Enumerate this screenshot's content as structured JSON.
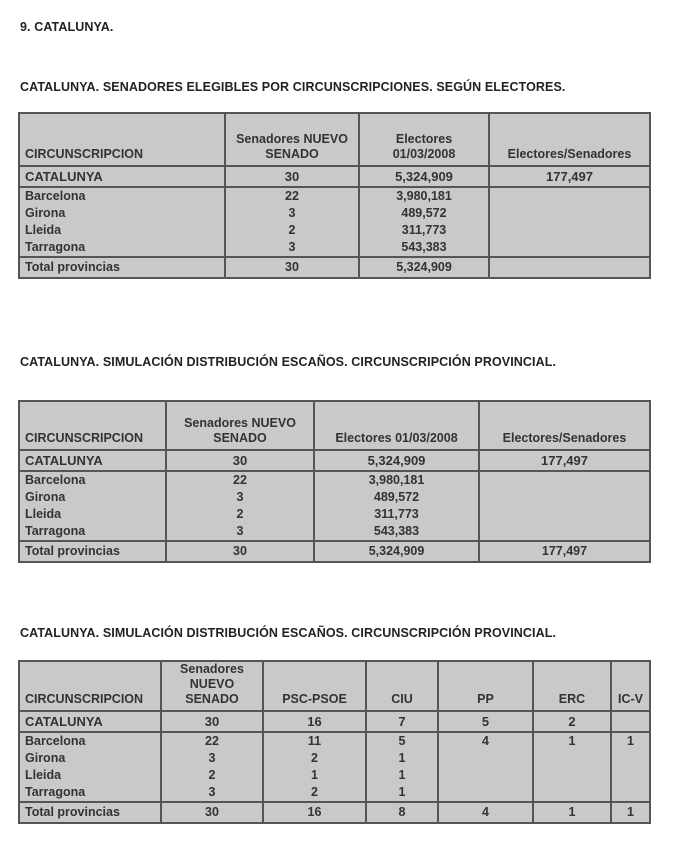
{
  "section_title": "9. CATALUNYA.",
  "tables": [
    {
      "heading": "CATALUNYA. SENADORES ELEGIBLES POR CIRCUNSCRIPCIONES. SEGÚN ELECTORES.",
      "columns": [
        "CIRCUNSCRIPCION",
        "Senadores NUEVO SENADO",
        "Electores 01/03/2008",
        "Electores/Senadores"
      ],
      "rows": [
        [
          "CATALUNYA",
          "30",
          "5,324,909",
          "177,497"
        ],
        [
          "Barcelona",
          "22",
          "3,980,181",
          ""
        ],
        [
          "Girona",
          "3",
          "489,572",
          ""
        ],
        [
          "Lleida",
          "2",
          "311,773",
          ""
        ],
        [
          "Tarragona",
          "3",
          "543,383",
          ""
        ],
        [
          "Total provincias",
          "30",
          "5,324,909",
          ""
        ]
      ]
    },
    {
      "heading": "CATALUNYA. SIMULACIÓN DISTRIBUCIÓN ESCAÑOS. CIRCUNSCRIPCIÓN PROVINCIAL.",
      "columns": [
        "CIRCUNSCRIPCION",
        "Senadores NUEVO SENADO",
        "Electores 01/03/2008",
        "Electores/Senadores"
      ],
      "rows": [
        [
          "CATALUNYA",
          "30",
          "5,324,909",
          "177,497"
        ],
        [
          "Barcelona",
          "22",
          "3,980,181",
          ""
        ],
        [
          "Girona",
          "3",
          "489,572",
          ""
        ],
        [
          "Lleida",
          "2",
          "311,773",
          ""
        ],
        [
          "Tarragona",
          "3",
          "543,383",
          ""
        ],
        [
          "Total provincias",
          "30",
          "5,324,909",
          "177,497"
        ]
      ]
    },
    {
      "heading": "CATALUNYA. SIMULACIÓN DISTRIBUCIÓN ESCAÑOS. CIRCUNSCRIPCIÓN PROVINCIAL.",
      "columns": [
        "CIRCUNSCRIPCION",
        "Senadores NUEVO SENADO",
        "PSC-PSOE",
        "CIU",
        "PP",
        "ERC",
        "IC-V"
      ],
      "rows": [
        [
          "CATALUNYA",
          "30",
          "16",
          "7",
          "5",
          "2",
          ""
        ],
        [
          "Barcelona",
          "22",
          "11",
          "5",
          "4",
          "1",
          "1"
        ],
        [
          "Girona",
          "3",
          "2",
          "1",
          "",
          "",
          ""
        ],
        [
          "Lleida",
          "2",
          "1",
          "1",
          "",
          "",
          ""
        ],
        [
          "Tarragona",
          "3",
          "2",
          "1",
          "",
          "",
          ""
        ],
        [
          "Total provincias",
          "30",
          "16",
          "8",
          "4",
          "1",
          "1"
        ]
      ]
    }
  ]
}
